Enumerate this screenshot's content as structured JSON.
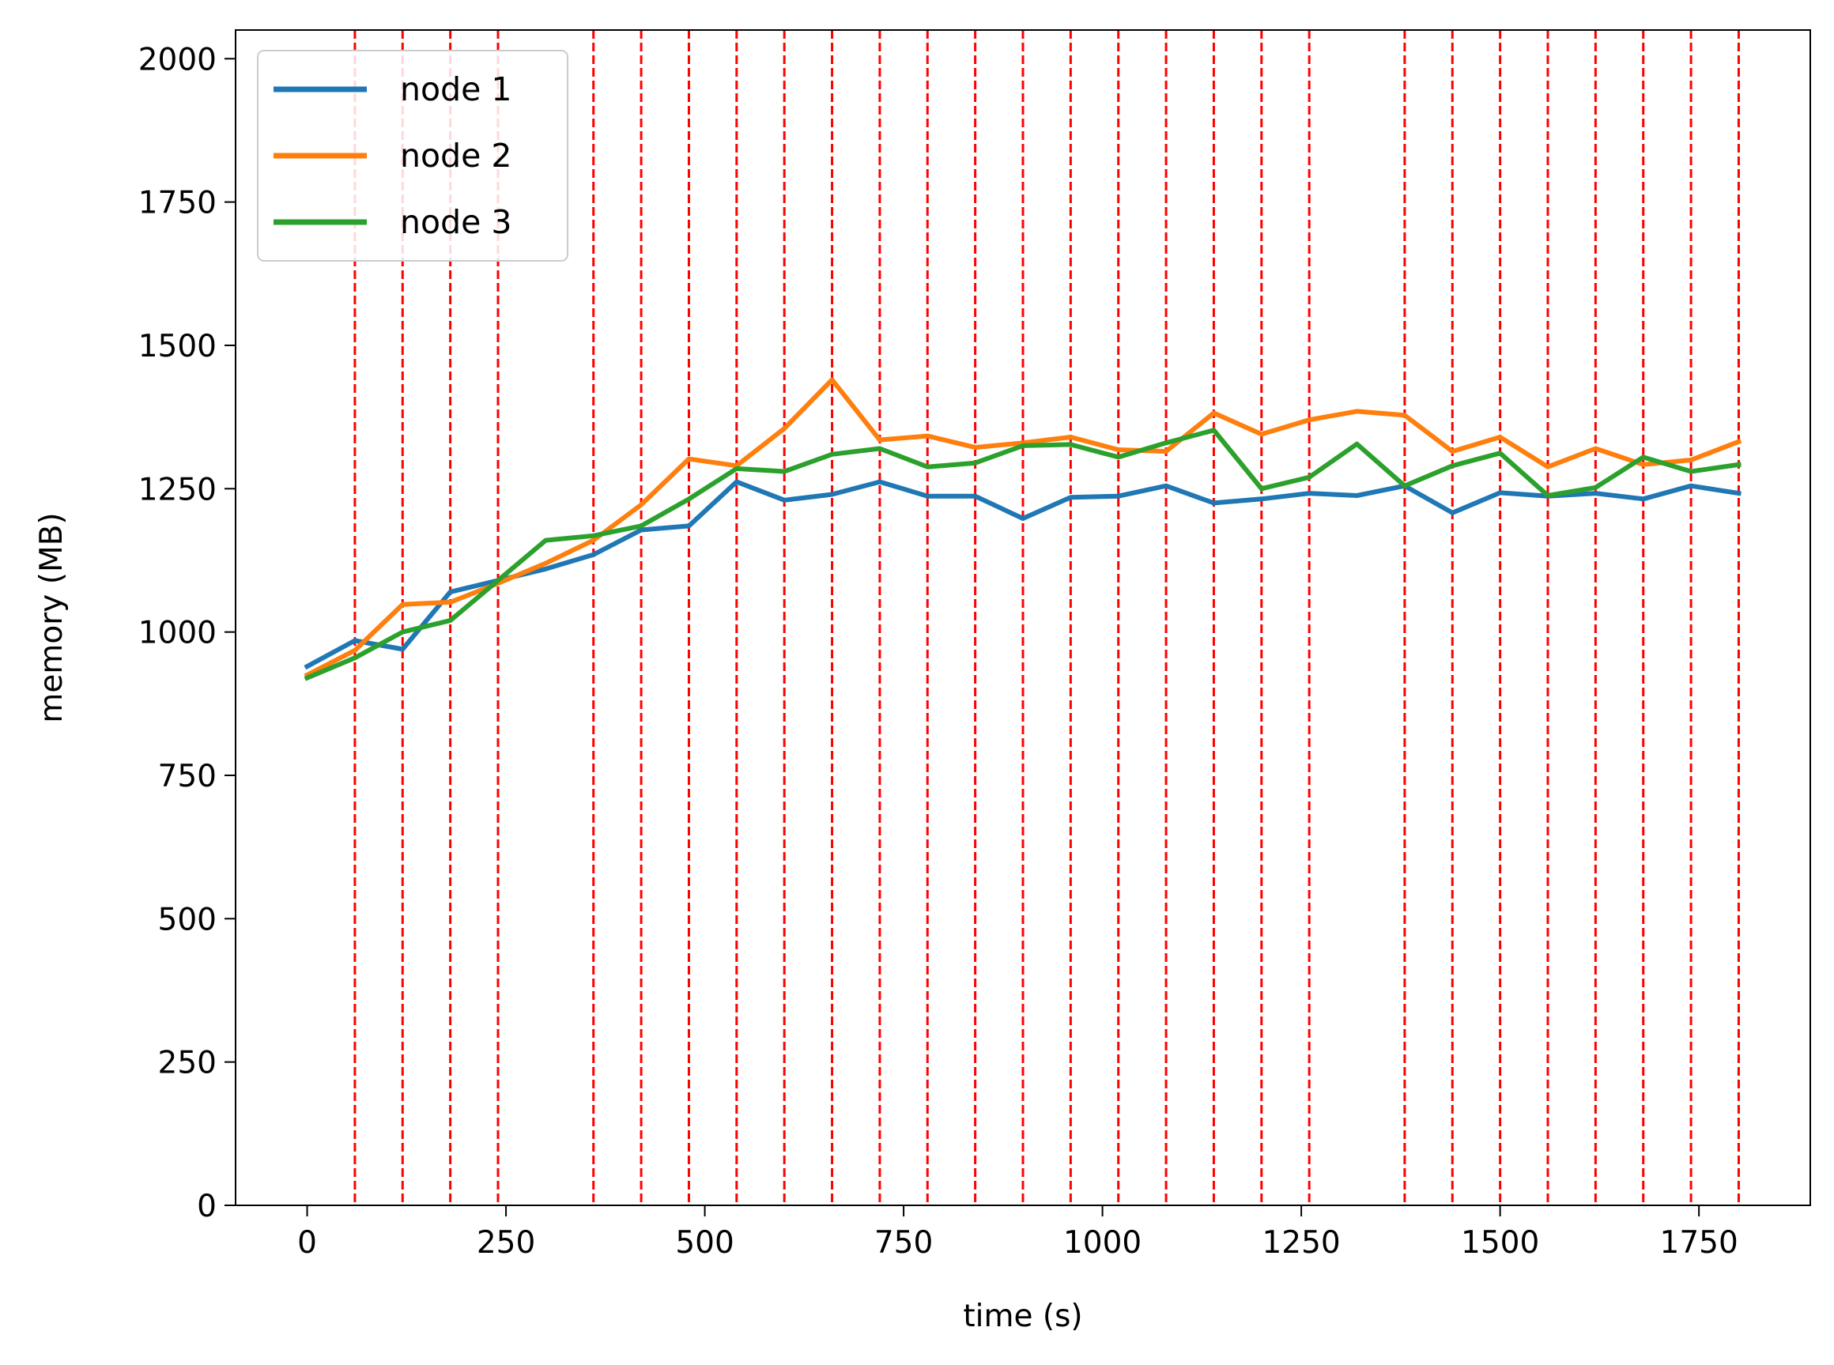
{
  "chart_data": {
    "type": "line",
    "title": "",
    "xlabel": "time (s)",
    "ylabel": "memory (MB)",
    "xlim": [
      -90,
      1890
    ],
    "ylim": [
      0,
      2050
    ],
    "xticks": [
      0,
      250,
      500,
      750,
      1000,
      1250,
      1500,
      1750
    ],
    "yticks": [
      0,
      250,
      500,
      750,
      1000,
      1250,
      1500,
      1750,
      2000
    ],
    "grid": false,
    "legend": "top-left",
    "event_lines": {
      "color": "#ff0000",
      "style": "dashed",
      "x": [
        60,
        120,
        180,
        240,
        360,
        420,
        480,
        540,
        600,
        660,
        720,
        780,
        840,
        900,
        960,
        1020,
        1080,
        1140,
        1200,
        1260,
        1380,
        1440,
        1500,
        1560,
        1620,
        1680,
        1740,
        1800
      ]
    },
    "x": [
      0,
      60,
      120,
      180,
      240,
      300,
      360,
      420,
      480,
      540,
      600,
      660,
      720,
      780,
      840,
      900,
      960,
      1020,
      1080,
      1140,
      1200,
      1260,
      1320,
      1380,
      1440,
      1500,
      1560,
      1620,
      1680,
      1740,
      1800
    ],
    "series": [
      {
        "name": "node 1",
        "color": "#1f77b4",
        "values": [
          940,
          985,
          970,
          1070,
          1090,
          1110,
          1135,
          1178,
          1185,
          1262,
          1230,
          1240,
          1262,
          1237,
          1237,
          1198,
          1235,
          1237,
          1255,
          1225,
          1232,
          1242,
          1238,
          1255,
          1208,
          1243,
          1237,
          1242,
          1232,
          1255,
          1242
        ]
      },
      {
        "name": "node 2",
        "color": "#ff7f0e",
        "values": [
          925,
          968,
          1048,
          1052,
          1085,
          1120,
          1160,
          1222,
          1302,
          1290,
          1355,
          1440,
          1335,
          1342,
          1322,
          1330,
          1340,
          1318,
          1315,
          1382,
          1345,
          1370,
          1385,
          1378,
          1315,
          1340,
          1288,
          1320,
          1292,
          1300,
          1332
        ]
      },
      {
        "name": "node 3",
        "color": "#2ca02c",
        "values": [
          920,
          955,
          1000,
          1020,
          1090,
          1160,
          1168,
          1185,
          1232,
          1285,
          1280,
          1310,
          1320,
          1288,
          1295,
          1325,
          1327,
          1305,
          1330,
          1352,
          1250,
          1270,
          1328,
          1255,
          1290,
          1312,
          1238,
          1252,
          1305,
          1280,
          1292
        ]
      }
    ]
  }
}
